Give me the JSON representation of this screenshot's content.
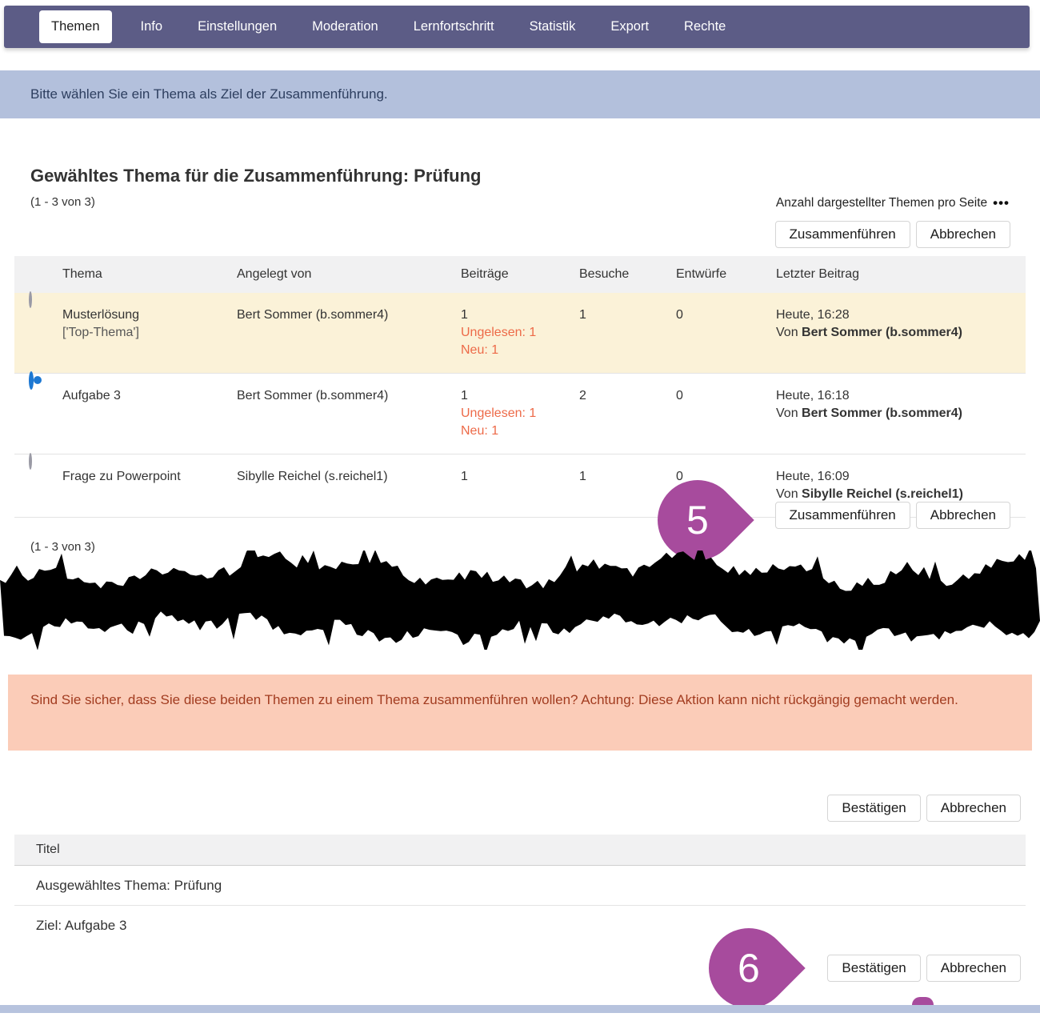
{
  "nav": {
    "tabs": [
      "Themen",
      "Info",
      "Einstellungen",
      "Moderation",
      "Lernfortschritt",
      "Statistik",
      "Export",
      "Rechte"
    ]
  },
  "info_banner": {
    "text": "Bitte wählen Sie ein Thema als Ziel der Zusammenführung."
  },
  "merge_section": {
    "title": "Gewähltes Thema für die Zusammenführung: Prüfung",
    "range_top": "(1 - 3 von 3)",
    "range_bottom": "(1 - 3 von 3)",
    "per_page_label": "Anzahl dargestellter Themen pro Seite",
    "per_page_more": "•••",
    "table": {
      "columns": [
        "Thema",
        "Angelegt von",
        "Beiträge",
        "Besuche",
        "Entwürfe",
        "Letzter Beitrag"
      ],
      "rows": [
        {
          "title": "Musterlösung",
          "subtitle": "['Top-Thema']",
          "author": "Bert Sommer (b.sommer4)",
          "posts": "1",
          "unread": "Ungelesen: 1",
          "newcount": "Neu: 1",
          "visits": "1",
          "drafts": "0",
          "last_time": "Heute, 16:28",
          "by_prefix": "Von",
          "by_name": "Bert Sommer (b.sommer4)"
        },
        {
          "title": "Aufgabe 3",
          "author": "Bert Sommer (b.sommer4)",
          "posts": "1",
          "unread": "Ungelesen: 1",
          "newcount": "Neu: 1",
          "visits": "2",
          "drafts": "0",
          "last_time": "Heute, 16:18",
          "by_prefix": "Von",
          "by_name": "Bert Sommer (b.sommer4)"
        },
        {
          "title": "Frage zu Powerpoint",
          "author": "Sibylle Reichel (s.reichel1)",
          "posts": "1",
          "visits": "1",
          "drafts": "0",
          "last_time": "Heute, 16:09",
          "by_prefix": "Von",
          "by_name": "Sibylle Reichel (s.reichel1)"
        }
      ]
    }
  },
  "buttons": {
    "merge": "Zusammenführen",
    "cancel": "Abbrechen",
    "confirm": "Bestätigen"
  },
  "confirm_section": {
    "warning": "Sind Sie sicher, dass Sie diese beiden Themen zu einem Thema zusammenführen wollen? Achtung: Diese Aktion kann nicht rückgängig gemacht werden.",
    "table": {
      "header": "Titel",
      "row_selected": "Ausgewähltes Thema: Prüfung",
      "row_target": "Ziel: Aufgabe 3"
    }
  },
  "annotations": {
    "step5": "5",
    "step6": "6"
  },
  "colors": {
    "nav_bg": "#5c5c86",
    "info_banner_bg": "#b3c0dc",
    "warn_banner_bg": "#fbccb8",
    "highlight_row_bg": "#fbf2d8",
    "unread_orange": "#ed6a48",
    "balloon_magenta": "#a74b9d",
    "radio_blue": "#1d78d2"
  }
}
